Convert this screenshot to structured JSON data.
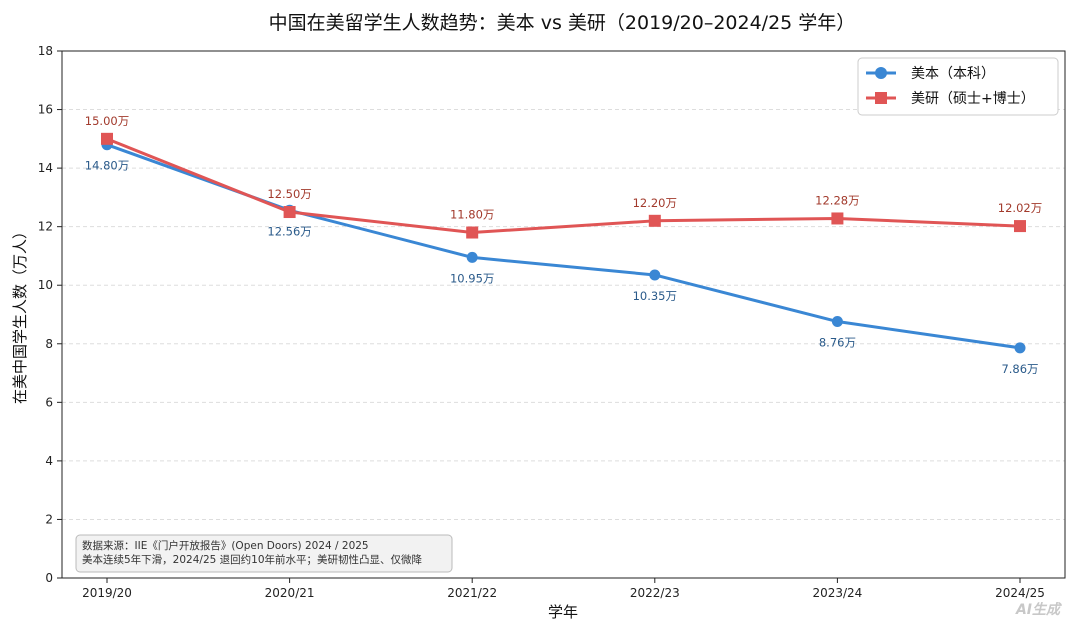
{
  "chart_data": {
    "type": "line",
    "title": "中国在美留学生人数趋势：美本 vs 美研（2019/20–2024/25 学年）",
    "xlabel": "学年",
    "ylabel": "在美中国学生人数（万人）",
    "categories": [
      "2019/20",
      "2020/21",
      "2021/22",
      "2022/23",
      "2023/24",
      "2024/25"
    ],
    "ylim": [
      0,
      18
    ],
    "yticks": [
      0,
      2,
      4,
      6,
      8,
      10,
      12,
      14,
      16,
      18
    ],
    "grid": "horizontal-dashed",
    "legend_position": "top-right",
    "series": [
      {
        "name": "美本（本科）",
        "color": "#3a87d4",
        "label_color": "#2a5a8a",
        "marker": "circle",
        "values": [
          14.8,
          12.56,
          10.95,
          10.35,
          8.76,
          7.86
        ],
        "labels": [
          "14.80万",
          "12.56万",
          "10.95万",
          "10.35万",
          "8.76万",
          "7.86万"
        ]
      },
      {
        "name": "美研（硕士+博士）",
        "color": "#e05555",
        "label_color": "#a23a2c",
        "marker": "square",
        "values": [
          15.0,
          12.5,
          11.8,
          12.2,
          12.28,
          12.02
        ],
        "labels": [
          "15.00万",
          "12.50万",
          "11.80万",
          "12.20万",
          "12.28万",
          "12.02万"
        ]
      }
    ],
    "annotation": {
      "lines": [
        "数据来源：IIE《门户开放报告》(Open Doors) 2024 / 2025",
        "美本连续5年下滑，2024/25 退回约10年前水平；美研韧性凸显、仅微降"
      ]
    }
  },
  "watermark": "AI生成"
}
